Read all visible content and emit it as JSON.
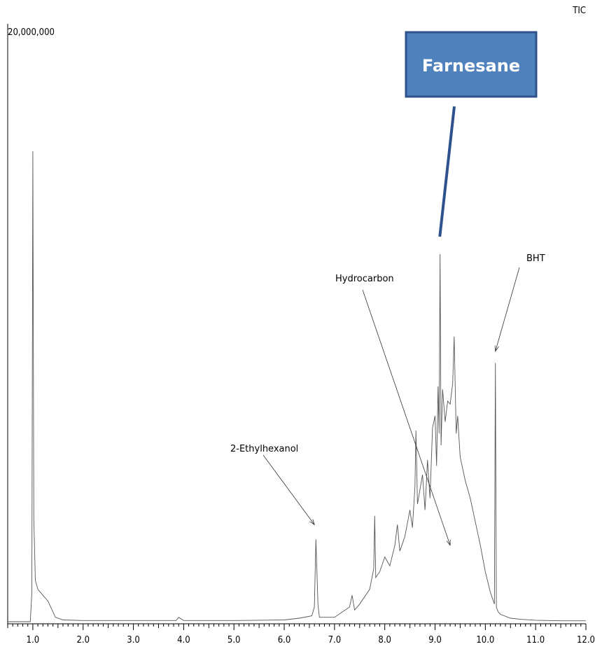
{
  "chart_data": {
    "type": "line",
    "title": "",
    "trace_label": "TIC",
    "ymax_label": "20,000,000",
    "xlabel": "",
    "ylabel": "",
    "xlim": [
      0.5,
      12.0
    ],
    "ylim": [
      0,
      20000000
    ],
    "grid": false,
    "x_ticks": [
      "1.0",
      "2.0",
      "3.0",
      "4.0",
      "5.0",
      "6.0",
      "7.0",
      "8.0",
      "9.0",
      "10.0",
      "11.0",
      "12.0"
    ],
    "series": [
      {
        "x": [
          0.5,
          0.95,
          0.98,
          1.0,
          1.02,
          1.05,
          1.1,
          1.2,
          1.3,
          1.45,
          1.6,
          2.0,
          3.0,
          3.85,
          3.9,
          4.0,
          5.0,
          6.0,
          6.3,
          6.55,
          6.6,
          6.63,
          6.67,
          6.7,
          7.0,
          7.3,
          7.35,
          7.4,
          7.5,
          7.7,
          7.78,
          7.8,
          7.82,
          7.9,
          8.0,
          8.1,
          8.2,
          8.25,
          8.3,
          8.4,
          8.5,
          8.55,
          8.6,
          8.62,
          8.65,
          8.7,
          8.75,
          8.8,
          8.85,
          8.9,
          8.95,
          9.0,
          9.03,
          9.06,
          9.08,
          9.1,
          9.12,
          9.15,
          9.2,
          9.25,
          9.3,
          9.35,
          9.38,
          9.42,
          9.45,
          9.5,
          9.6,
          9.7,
          9.8,
          9.9,
          10.0,
          10.1,
          10.18,
          10.2,
          10.22,
          10.25,
          10.3,
          10.5,
          10.7,
          11.0,
          11.5,
          12.0
        ],
        "y": [
          0,
          0,
          1000000,
          16000000,
          3500000,
          1400000,
          1100000,
          900000,
          700000,
          150000,
          60000,
          40000,
          40000,
          40000,
          150000,
          40000,
          40000,
          60000,
          120000,
          200000,
          500000,
          2800000,
          600000,
          150000,
          150000,
          500000,
          900000,
          400000,
          600000,
          1100000,
          1800000,
          3600000,
          1500000,
          1700000,
          2200000,
          1900000,
          2600000,
          3300000,
          2400000,
          2900000,
          3800000,
          3200000,
          4600000,
          6500000,
          4000000,
          4500000,
          5000000,
          3800000,
          5500000,
          4200000,
          6600000,
          7000000,
          5300000,
          8000000,
          6400000,
          12500000,
          6000000,
          7900000,
          6800000,
          7500000,
          7400000,
          8100000,
          9700000,
          6400000,
          7000000,
          5600000,
          4800000,
          4200000,
          3400000,
          2600000,
          1700000,
          1000000,
          600000,
          8800000,
          500000,
          350000,
          250000,
          120000,
          80000,
          50000,
          30000,
          30000
        ]
      }
    ],
    "annotations": [
      {
        "label": "2-Ethylhexanol",
        "x": 6.6,
        "y": 3300000
      },
      {
        "label": "Hydrocarbon",
        "x": 9.3,
        "y": 2600000
      },
      {
        "label": "BHT",
        "x": 10.2,
        "y": 9200000
      }
    ],
    "callout": {
      "label": "Farnesane",
      "x": 9.08,
      "y": 13000000
    }
  }
}
